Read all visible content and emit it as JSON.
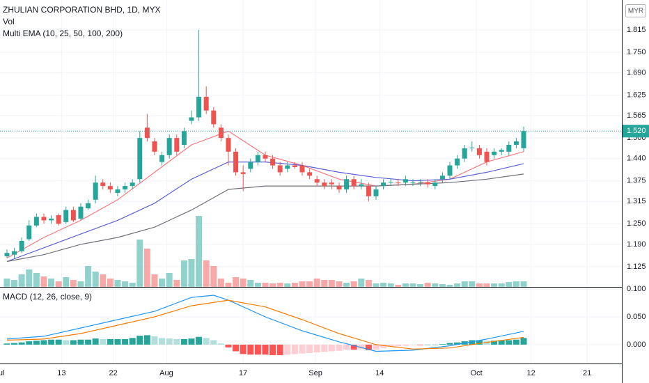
{
  "chart_data": [
    {
      "type": "candlestick",
      "title": "ZHULIAN CORPORATION BHD, 1D, MYX",
      "indicators": [
        "Vol",
        "Multi EMA (10, 25, 50, 100, 200)"
      ],
      "currency": "MYR",
      "up_color": "#26a69a",
      "down_color": "#ef5350",
      "open": [
        1.155,
        1.16,
        1.17,
        1.205,
        1.245,
        1.27,
        1.26,
        1.275,
        1.255,
        1.29,
        1.265,
        1.295,
        1.32,
        1.37,
        1.36,
        1.34,
        1.35,
        1.36,
        1.38,
        1.53,
        1.49,
        1.43,
        1.45,
        1.5,
        1.48,
        1.55,
        1.56,
        1.62,
        1.58,
        1.53,
        1.5,
        1.46,
        1.4,
        1.41,
        1.43,
        1.45,
        1.44,
        1.42,
        1.41,
        1.42,
        1.42,
        1.4,
        1.38,
        1.37,
        1.37,
        1.36,
        1.35,
        1.38,
        1.36,
        1.36,
        1.33,
        1.36,
        1.37,
        1.37,
        1.37,
        1.37,
        1.37,
        1.37,
        1.36,
        1.38,
        1.39,
        1.42,
        1.44,
        1.47,
        1.47,
        1.46,
        1.45,
        1.46,
        1.46,
        1.48,
        1.47
      ],
      "high": [
        1.175,
        1.18,
        1.21,
        1.26,
        1.28,
        1.28,
        1.275,
        1.28,
        1.3,
        1.3,
        1.31,
        1.32,
        1.39,
        1.38,
        1.37,
        1.36,
        1.37,
        1.38,
        1.52,
        1.57,
        1.5,
        1.46,
        1.51,
        1.51,
        1.53,
        1.58,
        1.815,
        1.65,
        1.59,
        1.54,
        1.51,
        1.47,
        1.42,
        1.44,
        1.46,
        1.46,
        1.45,
        1.43,
        1.43,
        1.43,
        1.43,
        1.41,
        1.39,
        1.38,
        1.38,
        1.37,
        1.39,
        1.39,
        1.38,
        1.37,
        1.36,
        1.38,
        1.38,
        1.38,
        1.39,
        1.38,
        1.38,
        1.38,
        1.38,
        1.4,
        1.43,
        1.45,
        1.48,
        1.49,
        1.48,
        1.47,
        1.47,
        1.47,
        1.49,
        1.5,
        1.533
      ],
      "low": [
        1.15,
        1.15,
        1.165,
        1.2,
        1.24,
        1.25,
        1.25,
        1.245,
        1.25,
        1.255,
        1.26,
        1.29,
        1.31,
        1.35,
        1.34,
        1.33,
        1.34,
        1.35,
        1.37,
        1.49,
        1.45,
        1.42,
        1.44,
        1.45,
        1.47,
        1.54,
        1.55,
        1.57,
        1.53,
        1.49,
        1.42,
        1.39,
        1.345,
        1.4,
        1.42,
        1.43,
        1.41,
        1.39,
        1.4,
        1.41,
        1.39,
        1.38,
        1.36,
        1.35,
        1.35,
        1.34,
        1.34,
        1.35,
        1.35,
        1.315,
        1.32,
        1.35,
        1.36,
        1.36,
        1.36,
        1.36,
        1.36,
        1.355,
        1.35,
        1.37,
        1.38,
        1.41,
        1.43,
        1.46,
        1.44,
        1.42,
        1.44,
        1.45,
        1.45,
        1.47,
        1.46
      ],
      "close": [
        1.165,
        1.17,
        1.2,
        1.245,
        1.27,
        1.26,
        1.265,
        1.25,
        1.29,
        1.26,
        1.3,
        1.31,
        1.37,
        1.36,
        1.35,
        1.35,
        1.36,
        1.37,
        1.5,
        1.5,
        1.46,
        1.45,
        1.5,
        1.46,
        1.52,
        1.56,
        1.62,
        1.58,
        1.54,
        1.5,
        1.46,
        1.4,
        1.395,
        1.43,
        1.45,
        1.44,
        1.42,
        1.4,
        1.42,
        1.415,
        1.4,
        1.39,
        1.37,
        1.36,
        1.365,
        1.35,
        1.38,
        1.36,
        1.365,
        1.33,
        1.35,
        1.37,
        1.372,
        1.368,
        1.38,
        1.37,
        1.372,
        1.365,
        1.37,
        1.39,
        1.42,
        1.44,
        1.47,
        1.472,
        1.45,
        1.43,
        1.46,
        1.465,
        1.48,
        1.49,
        1.52
      ],
      "volume": [
        12,
        10,
        18,
        25,
        20,
        15,
        12,
        8,
        14,
        10,
        8,
        30,
        22,
        18,
        12,
        10,
        8,
        6,
        68,
        55,
        18,
        12,
        20,
        10,
        38,
        40,
        102,
        38,
        30,
        12,
        6,
        14,
        12,
        10,
        6,
        6,
        5,
        6,
        5,
        6,
        8,
        8,
        12,
        10,
        10,
        8,
        6,
        8,
        12,
        10,
        5,
        6,
        5,
        3,
        5,
        5,
        4,
        6,
        5,
        4,
        3,
        5,
        8,
        8,
        5,
        5,
        5,
        5,
        7,
        8,
        8
      ],
      "series": [
        {
          "color": "#f7777b",
          "x": [
            0,
            5,
            10,
            15,
            20,
            25,
            30,
            35,
            40,
            45,
            50,
            55,
            60,
            65,
            70
          ],
          "values": [
            1.15,
            1.21,
            1.26,
            1.32,
            1.4,
            1.48,
            1.52,
            1.45,
            1.42,
            1.38,
            1.36,
            1.365,
            1.38,
            1.43,
            1.46
          ]
        },
        {
          "color": "#5c5fd6",
          "x": [
            0,
            5,
            10,
            15,
            20,
            25,
            30,
            35,
            40,
            45,
            50,
            55,
            60,
            65,
            70
          ],
          "values": [
            1.14,
            1.18,
            1.22,
            1.26,
            1.31,
            1.38,
            1.43,
            1.43,
            1.42,
            1.4,
            1.385,
            1.375,
            1.38,
            1.4,
            1.425
          ]
        },
        {
          "color": "#6f7079",
          "x": [
            0,
            5,
            10,
            15,
            20,
            25,
            30,
            35,
            40,
            45,
            50,
            55,
            60,
            65,
            70
          ],
          "values": [
            1.14,
            1.16,
            1.19,
            1.21,
            1.24,
            1.29,
            1.35,
            1.36,
            1.36,
            1.36,
            1.36,
            1.365,
            1.37,
            1.38,
            1.395
          ]
        }
      ],
      "last_price": {
        "value": 1.52,
        "label": "1.520"
      },
      "ylim": [
        1.066,
        1.902
      ],
      "yticks": [
        1.815,
        {
          "value": 1.75,
          "label": "1.750"
        },
        {
          "value": 1.69,
          "label": "1.690"
        },
        1.625,
        1.565,
        {
          "value": 1.5,
          "label": "1.500"
        },
        {
          "value": 1.44,
          "label": "1.440"
        },
        1.375,
        1.315,
        {
          "value": 1.25,
          "label": "1.250"
        },
        {
          "value": 1.19,
          "label": "1.190"
        },
        1.125
      ],
      "xlim": [
        -0.94,
        83.3
      ],
      "xticks": [
        {
          "value": -1.0,
          "label": "Jul"
        },
        {
          "value": 7.4,
          "label": "13"
        },
        {
          "value": 14.4,
          "label": "22"
        },
        {
          "value": 21.6,
          "label": "Aug"
        },
        {
          "value": 32,
          "label": "17"
        },
        {
          "value": 41.8,
          "label": "Sep"
        },
        {
          "value": 50.5,
          "label": "14"
        },
        {
          "value": 63.6,
          "label": "Oct"
        },
        {
          "value": 71,
          "label": "12"
        },
        {
          "value": 78.6,
          "label": "21"
        }
      ],
      "grid": true
    },
    {
      "type": "macd",
      "title": "MACD (12, 26, close, 9)",
      "histogram": [
        0.002,
        0.003,
        0.004,
        0.006,
        0.007,
        0.008,
        0.009,
        0.009,
        0.008,
        0.008,
        0.009,
        0.009,
        0.011,
        0.01,
        0.01,
        0.01,
        0.01,
        0.012,
        0.016,
        0.017,
        0.015,
        0.012,
        0.011,
        0.01,
        0.01,
        0.011,
        0.014,
        0.012,
        0.008,
        0.002,
        -0.005,
        -0.012,
        -0.017,
        -0.018,
        -0.018,
        -0.018,
        -0.019,
        -0.019,
        -0.018,
        -0.017,
        -0.016,
        -0.015,
        -0.014,
        -0.013,
        -0.012,
        -0.011,
        -0.009,
        -0.009,
        -0.008,
        -0.01,
        -0.009,
        -0.006,
        -0.004,
        -0.003,
        -0.002,
        -0.001,
        -0.001,
        0.0,
        0.0,
        0.001,
        0.003,
        0.004,
        0.006,
        0.008,
        0.008,
        0.007,
        0.007,
        0.008,
        0.008,
        0.009,
        0.012
      ],
      "histogram_colors": [
        "#26a69a",
        "#b2dfdb",
        "#ff5252",
        "#ffcdd2"
      ],
      "series": [
        {
          "color": "#2196f3",
          "x": [
            0,
            5,
            10,
            15,
            20,
            25,
            28,
            30,
            35,
            40,
            45,
            50,
            55,
            60,
            65,
            70
          ],
          "values": [
            0.01,
            0.015,
            0.03,
            0.045,
            0.06,
            0.085,
            0.089,
            0.08,
            0.05,
            0.025,
            0.005,
            -0.012,
            -0.01,
            -0.002,
            0.01,
            0.024
          ]
        },
        {
          "color": "#f57c00",
          "x": [
            0,
            5,
            10,
            15,
            20,
            25,
            30,
            35,
            40,
            45,
            50,
            55,
            60,
            65,
            70
          ],
          "values": [
            0.008,
            0.01,
            0.02,
            0.035,
            0.05,
            0.07,
            0.08,
            0.068,
            0.045,
            0.02,
            0.0,
            -0.008,
            -0.006,
            0.004,
            0.013
          ]
        }
      ],
      "ylim": [
        -0.034,
        0.104
      ],
      "yticks": [
        {
          "value": 0.1,
          "label": "0.100"
        },
        {
          "value": 0.05,
          "label": "0.050"
        },
        {
          "value": 0,
          "label": "0.000"
        }
      ],
      "grid": true
    }
  ]
}
